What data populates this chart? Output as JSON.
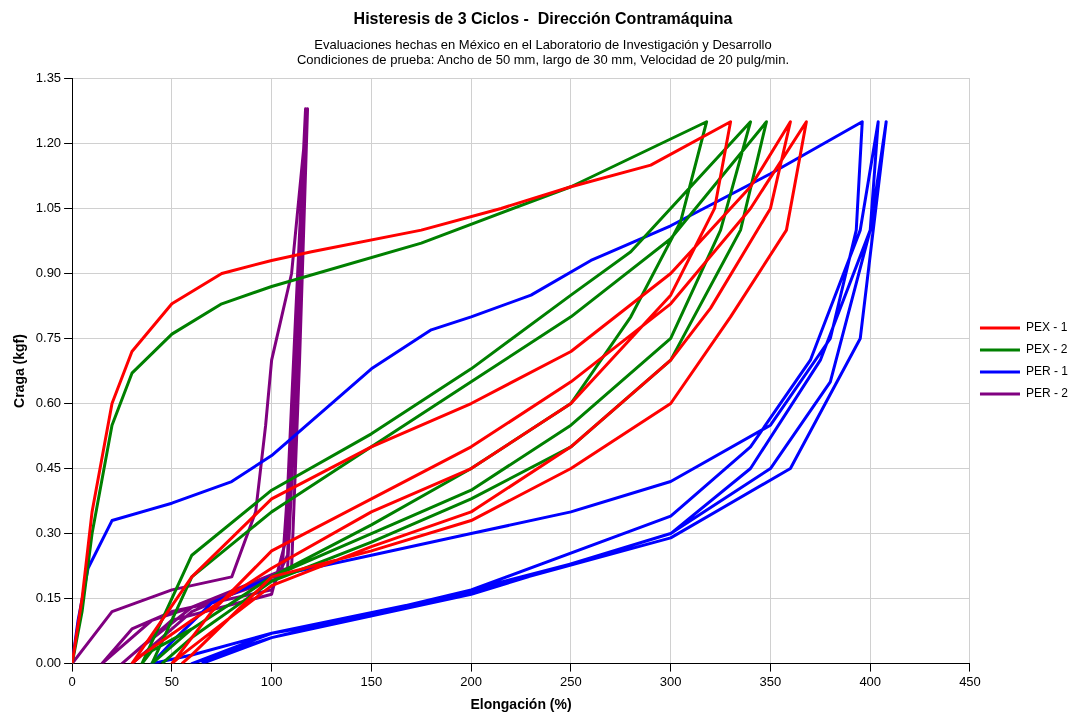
{
  "chart_data": {
    "type": "line",
    "title": "Histeresis de 3 Ciclos -  Dirección Contramáquina",
    "subtitle": "Evaluaciones hechas en México en el Laboratorio de Investigación y Desarrollo\nCondiciones de prueba: Ancho de 50 mm, largo de 30 mm, Velocidad de 20 pulg/min.",
    "xlabel": "Elongación (%)",
    "ylabel": "Craga (kgf)",
    "xlim": [
      0,
      450
    ],
    "xticks": [
      0,
      50,
      100,
      150,
      200,
      250,
      300,
      350,
      400,
      450
    ],
    "ylim": [
      0,
      1.35
    ],
    "yticks": [
      {
        "value": 0,
        "label": "0.00"
      },
      {
        "value": 0.15,
        "label": "0.15"
      },
      {
        "value": 0.3,
        "label": "0.30"
      },
      {
        "value": 0.45,
        "label": "0.45"
      },
      {
        "value": 0.6,
        "label": "0.60"
      },
      {
        "value": 0.75,
        "label": "0.75"
      },
      {
        "value": 0.9,
        "label": "0.90"
      },
      {
        "value": 1.05,
        "label": "1.05"
      },
      {
        "value": 1.2,
        "label": "1.20"
      },
      {
        "value": 1.35,
        "label": "1.35"
      }
    ],
    "grid": true,
    "legend": "right",
    "marker": "none",
    "line_style": "solid",
    "series": [
      {
        "name": "PEX - 1",
        "color": "#ff0000",
        "x": [
          0,
          5,
          10,
          20,
          30,
          50,
          75,
          100,
          120,
          175,
          215,
          250,
          290,
          330,
          322,
          300,
          250,
          200,
          150,
          100,
          60,
          35,
          30,
          60,
          100,
          150,
          200,
          250,
          300,
          340,
          360,
          350,
          320,
          300,
          250,
          200,
          150,
          100,
          55,
          50,
          70,
          100,
          150,
          200,
          250,
          300,
          340,
          368,
          358,
          330,
          300,
          250,
          200,
          150,
          100,
          60,
          55
        ],
        "values": [
          0,
          0.15,
          0.35,
          0.6,
          0.72,
          0.83,
          0.9,
          0.93,
          0.95,
          1.0,
          1.05,
          1.1,
          1.15,
          1.25,
          1.05,
          0.85,
          0.6,
          0.45,
          0.35,
          0.22,
          0.1,
          0.02,
          0,
          0.2,
          0.38,
          0.5,
          0.6,
          0.72,
          0.9,
          1.1,
          1.25,
          1.05,
          0.82,
          0.7,
          0.5,
          0.35,
          0.27,
          0.18,
          0.02,
          0,
          0.12,
          0.26,
          0.38,
          0.5,
          0.65,
          0.83,
          1.05,
          1.25,
          1.0,
          0.8,
          0.6,
          0.45,
          0.33,
          0.26,
          0.2,
          0.02,
          0
        ]
      },
      {
        "name": "PEX - 2",
        "color": "#008000",
        "x": [
          0,
          5,
          10,
          20,
          30,
          50,
          75,
          100,
          175,
          250,
          318,
          305,
          280,
          250,
          200,
          150,
          100,
          60,
          40,
          35,
          60,
          100,
          150,
          200,
          250,
          280,
          340,
          325,
          300,
          250,
          200,
          150,
          100,
          60,
          45,
          40,
          60,
          100,
          150,
          200,
          250,
          300,
          348,
          335,
          300,
          250,
          200,
          150,
          100,
          60,
          45
        ],
        "values": [
          0,
          0.12,
          0.3,
          0.55,
          0.67,
          0.76,
          0.83,
          0.87,
          0.97,
          1.1,
          1.25,
          1.02,
          0.8,
          0.6,
          0.45,
          0.32,
          0.2,
          0.08,
          0.03,
          0,
          0.25,
          0.4,
          0.53,
          0.68,
          0.85,
          0.95,
          1.25,
          1.0,
          0.75,
          0.55,
          0.4,
          0.3,
          0.2,
          0.08,
          0.02,
          0,
          0.2,
          0.35,
          0.5,
          0.65,
          0.8,
          0.98,
          1.25,
          1.0,
          0.7,
          0.5,
          0.38,
          0.28,
          0.19,
          0.06,
          0
        ]
      },
      {
        "name": "PER - 1",
        "color": "#0000ff",
        "x": [
          0,
          3,
          8,
          20,
          50,
          80,
          100,
          130,
          150,
          180,
          200,
          230,
          260,
          300,
          350,
          396,
          393,
          380,
          350,
          300,
          250,
          200,
          150,
          100,
          70,
          50,
          40,
          60,
          100,
          150,
          200,
          250,
          300,
          350,
          380,
          400,
          404,
          395,
          370,
          340,
          300,
          200,
          100,
          60,
          100,
          200,
          300,
          360,
          395,
          408,
          400,
          375,
          340,
          300,
          200,
          100,
          65
        ],
        "values": [
          0,
          0.1,
          0.22,
          0.33,
          0.37,
          0.42,
          0.48,
          0.6,
          0.68,
          0.77,
          0.8,
          0.85,
          0.93,
          1.01,
          1.13,
          1.25,
          1.0,
          0.75,
          0.55,
          0.42,
          0.35,
          0.3,
          0.25,
          0.2,
          0.14,
          0.05,
          0,
          0.02,
          0.07,
          0.11,
          0.17,
          0.23,
          0.3,
          0.45,
          0.65,
          1.0,
          1.25,
          1.0,
          0.7,
          0.5,
          0.34,
          0.17,
          0.06,
          0,
          0.07,
          0.165,
          0.29,
          0.45,
          0.75,
          1.25,
          1.0,
          0.7,
          0.45,
          0.3,
          0.16,
          0.06,
          0
        ]
      },
      {
        "name": "PER - 2",
        "color": "#800080",
        "x": [
          0,
          10,
          20,
          50,
          80,
          92,
          97,
          100,
          105,
          110,
          118,
          112,
          108,
          105,
          80,
          40,
          20,
          15,
          30,
          50,
          100,
          108,
          110,
          112,
          117,
          113,
          108,
          60,
          30,
          25,
          50,
          100,
          108,
          112,
          118,
          114,
          110,
          60,
          30
        ],
        "values": [
          0,
          0.06,
          0.12,
          0.17,
          0.2,
          0.35,
          0.55,
          0.7,
          0.8,
          0.9,
          1.28,
          0.8,
          0.4,
          0.2,
          0.16,
          0.1,
          0.02,
          0,
          0.08,
          0.12,
          0.17,
          0.25,
          0.5,
          0.8,
          1.28,
          0.7,
          0.22,
          0.13,
          0.02,
          0,
          0.1,
          0.16,
          0.3,
          0.7,
          1.28,
          0.7,
          0.22,
          0.12,
          0
        ]
      }
    ]
  }
}
